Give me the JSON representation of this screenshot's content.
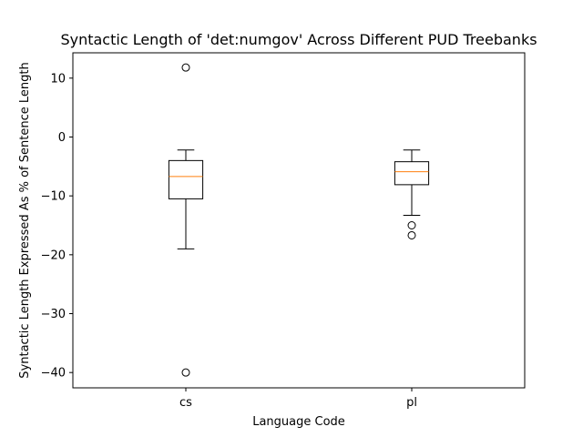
{
  "chart_data": {
    "type": "box",
    "title": "Syntactic Length of 'det:numgov' Across Different PUD Treebanks",
    "xlabel": "Language Code",
    "ylabel": "Syntactic Length Expressed As % of Sentence Length",
    "ylim": [
      -42.6,
      14.3
    ],
    "yticks": [
      10,
      0,
      -10,
      -20,
      -30,
      -40
    ],
    "grid": false,
    "categories": [
      "cs",
      "pl"
    ],
    "boxes": [
      {
        "category": "cs",
        "whisker_low": -19.0,
        "q1": -10.5,
        "median": -6.7,
        "q3": -4.0,
        "whisker_high": -2.2,
        "outliers": [
          11.8,
          -40.0
        ]
      },
      {
        "category": "pl",
        "whisker_low": -13.3,
        "q1": -8.1,
        "median": -5.9,
        "q3": -4.2,
        "whisker_high": -2.2,
        "outliers": [
          -15.0,
          -16.7
        ]
      }
    ],
    "colors": {
      "box": "#000000",
      "median": "#ff7f0e",
      "outlier": "#000000"
    }
  }
}
